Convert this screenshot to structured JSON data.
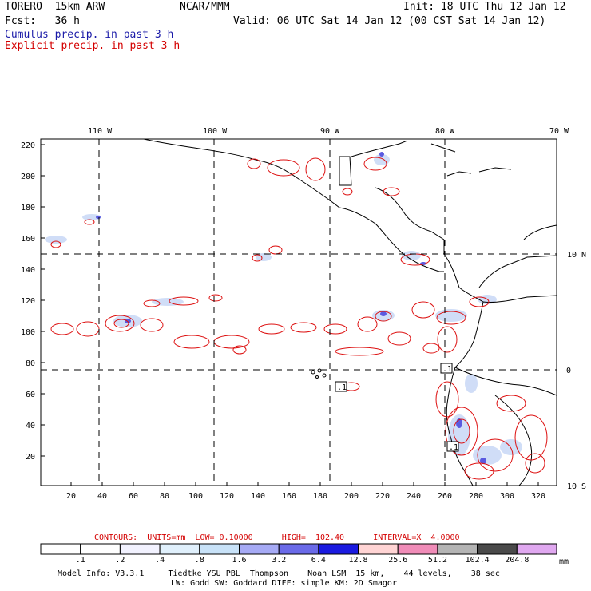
{
  "header": {
    "model": "TORERO  15km ARW",
    "org": "NCAR/MMM",
    "init": "Init: 18 UTC Thu 12 Jan 12",
    "fcst": "Fcst:   36 h",
    "valid": "Valid: 06 UTC Sat 14 Jan 12 (00 CST Sat 14 Jan 12)",
    "field1": "Cumulus precip. in past 3 h",
    "field2": "Explicit precip. in past 3 h"
  },
  "map": {
    "lon_labels": [
      "110 W",
      "100 W",
      "90 W",
      "80 W",
      "70 W"
    ],
    "lat_labels": [
      "10 N",
      "0",
      "10 S"
    ],
    "y_ticks": [
      "220",
      "200",
      "180",
      "160",
      "140",
      "120",
      "100",
      "80",
      "60",
      "40",
      "20"
    ],
    "x_ticks": [
      "20",
      "40",
      "60",
      "80",
      "100",
      "120",
      "140",
      "160",
      "180",
      "200",
      "220",
      "240",
      "260",
      "280",
      "300",
      "320"
    ],
    "contour_labels": [
      ".1",
      ".1",
      ".1"
    ]
  },
  "footer": {
    "contours_line": "CONTOURS:  UNITS=mm  LOW= 0.10000      HIGH=  102.40      INTERVAL=X  4.0000",
    "colorbar_values": [
      ".1",
      ".2",
      ".4",
      ".8",
      "1.6",
      "3.2",
      "6.4",
      "12.8",
      "25.6",
      "51.2",
      "102.4",
      "204.8"
    ],
    "colorbar_unit": "mm",
    "colorbar_colors": [
      "#ffffff",
      "#ffffff",
      "#f2f2ff",
      "#e0f0fc",
      "#c8e2f8",
      "#a6aaf5",
      "#6a6ae8",
      "#1a1ae0",
      "#ffd4d4",
      "#f08cb8",
      "#b4b4b4",
      "#4a4a4a",
      "#e0a8f0"
    ],
    "model_info_1": "Model Info: V3.3.1     Tiedtke YSU PBL  Thompson    Noah LSM  15 km,    44 levels,    38 sec",
    "model_info_2": "LW: Godd SW: Goddard DIFF: simple KM: 2D Smagor"
  }
}
